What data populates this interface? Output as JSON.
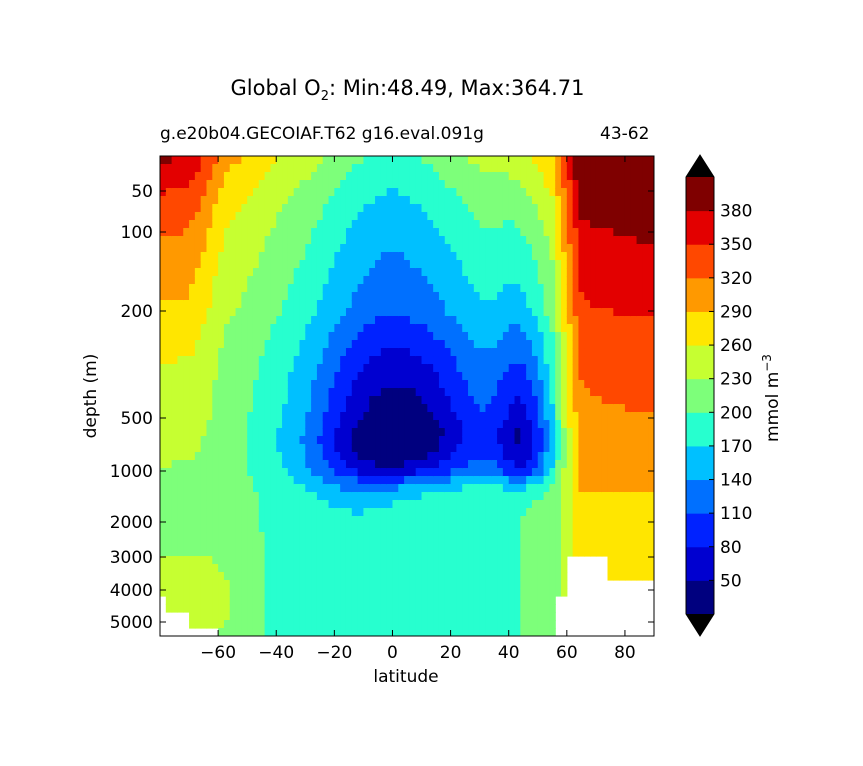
{
  "title": {
    "prefix": "Global O",
    "subscript": "2",
    "suffix": ": Min:48.49, Max:364.71"
  },
  "subtitle_left": "g.e20b04.GECOIAF.T62 g16.eval.091g",
  "subtitle_right": "43-62",
  "chart_data": {
    "type": "heatmap",
    "variable": "O2",
    "min": 48.49,
    "max": 364.71,
    "xlabel": "latitude",
    "ylabel": "depth (m)",
    "xlim": [
      -80,
      90
    ],
    "ylim": [
      5500,
      0
    ],
    "y_scale": "nonlinear (depth axis stretched near surface)",
    "x_ticks": [
      -60,
      -40,
      -20,
      0,
      20,
      40,
      60,
      80
    ],
    "x_tick_labels": [
      "−60",
      "−40",
      "−20",
      "0",
      "20",
      "40",
      "60",
      "80"
    ],
    "y_ticks": [
      50,
      100,
      200,
      500,
      1000,
      2000,
      3000,
      4000,
      5000
    ],
    "y_tick_labels": [
      "50",
      "100",
      "200",
      "500",
      "1000",
      "2000",
      "3000",
      "4000",
      "5000"
    ],
    "colorbar": {
      "label": "mmol m",
      "label_superscript": "−3",
      "extend": "both",
      "levels": [
        20,
        50,
        80,
        110,
        140,
        170,
        200,
        230,
        260,
        290,
        320,
        350,
        380,
        410
      ],
      "tick_labels": [
        "50",
        "80",
        "110",
        "140",
        "170",
        "200",
        "230",
        "260",
        "290",
        "320",
        "350",
        "380"
      ],
      "colors": [
        "#00007f",
        "#0000d0",
        "#0022ff",
        "#0070ff",
        "#00c0ff",
        "#27ffcf",
        "#7dff7a",
        "#c6ff31",
        "#ffe600",
        "#ff9900",
        "#ff4800",
        "#e30000",
        "#7f0000"
      ],
      "extend_min_color": "#000000",
      "extend_max_color": "#000000"
    }
  }
}
